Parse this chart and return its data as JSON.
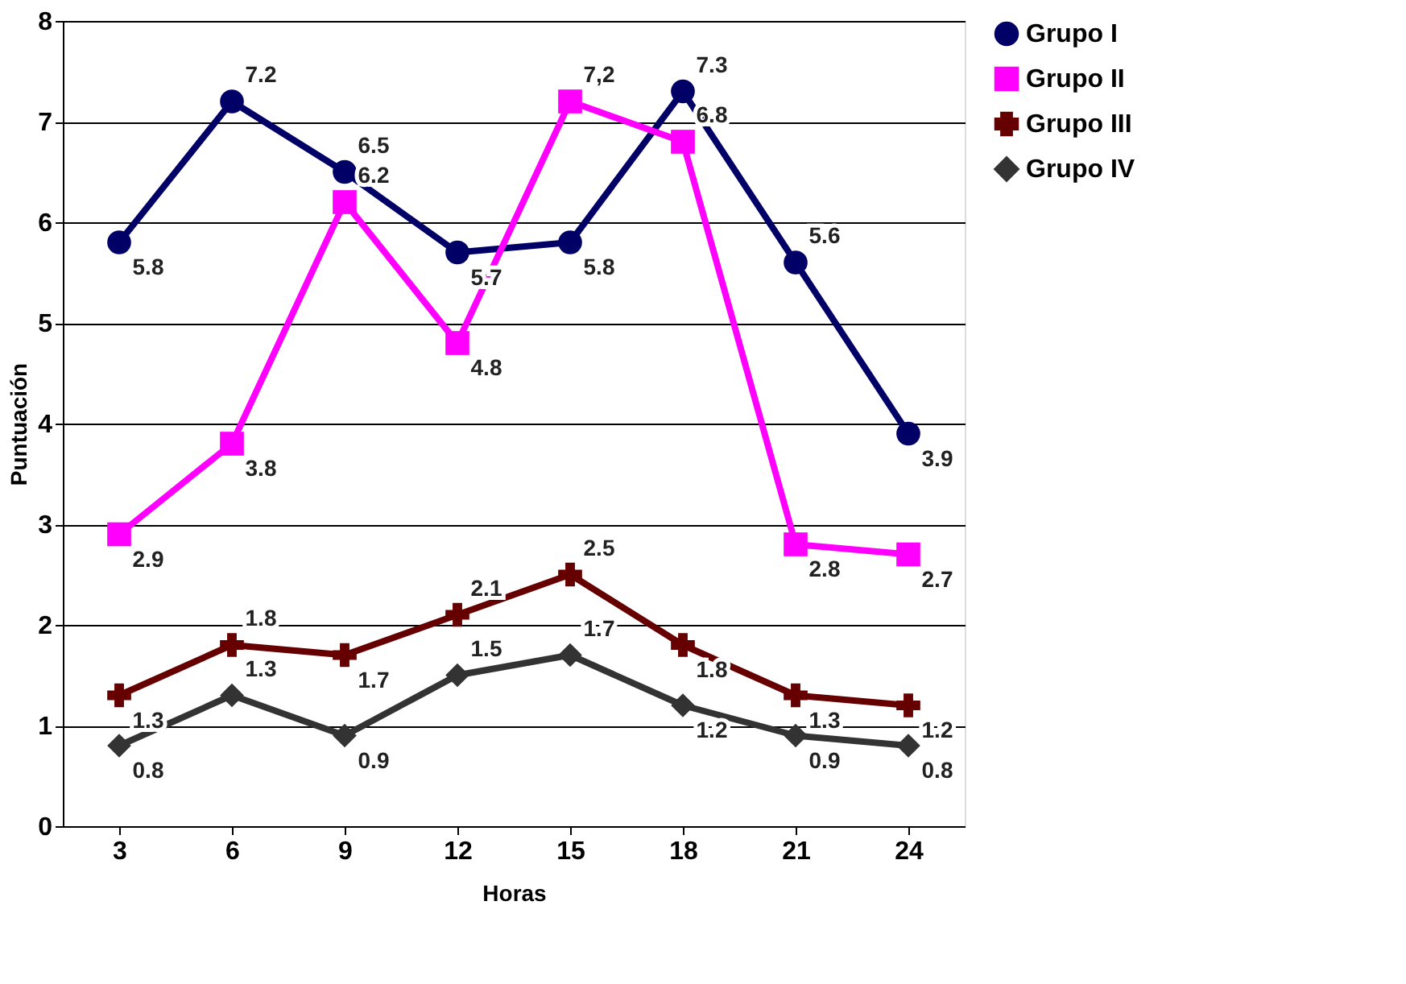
{
  "chart_data": {
    "type": "line",
    "xlabel": "Horas",
    "ylabel": "Puntuación",
    "categories": [
      "3",
      "6",
      "9",
      "12",
      "15",
      "18",
      "21",
      "24"
    ],
    "series": [
      {
        "name": "Grupo I",
        "color": "#000066",
        "marker": "circle",
        "values": [
          5.8,
          7.2,
          6.5,
          5.7,
          5.8,
          7.3,
          5.6,
          3.9
        ],
        "value_labels": [
          "5.8",
          "7.2",
          "6.5",
          "5.7",
          "5.8",
          "7.3",
          "5.6",
          "3.9"
        ]
      },
      {
        "name": "Grupo II",
        "color": "#ff00ff",
        "marker": "square",
        "values": [
          2.9,
          3.8,
          6.2,
          4.8,
          7.2,
          6.8,
          2.8,
          2.7
        ],
        "value_labels": [
          "2.9",
          "3.8",
          "6.2",
          "4.8",
          "7,2",
          "6.8",
          "2.8",
          "2.7"
        ]
      },
      {
        "name": "Grupo III",
        "color": "#660000",
        "marker": "cross",
        "values": [
          1.3,
          1.8,
          1.7,
          2.1,
          2.5,
          1.8,
          1.3,
          1.2
        ],
        "value_labels": [
          "1.3",
          "1.8",
          "1.7",
          "2.1",
          "2.5",
          "1.8",
          "1.3",
          "1.2"
        ]
      },
      {
        "name": "Grupo IV",
        "color": "#333333",
        "marker": "diamond",
        "values": [
          0.8,
          1.3,
          0.9,
          1.5,
          1.7,
          1.2,
          0.9,
          0.8
        ],
        "value_labels": [
          "0.8",
          "1.3",
          "0.9",
          "1.5",
          "1.7",
          "1.2",
          "0.9",
          "0.8"
        ]
      }
    ],
    "ylim": [
      0,
      8
    ],
    "yticks": [
      0,
      1,
      2,
      3,
      4,
      5,
      6,
      7,
      8
    ],
    "grid": "y",
    "legend": "right",
    "line_style": "solid"
  }
}
